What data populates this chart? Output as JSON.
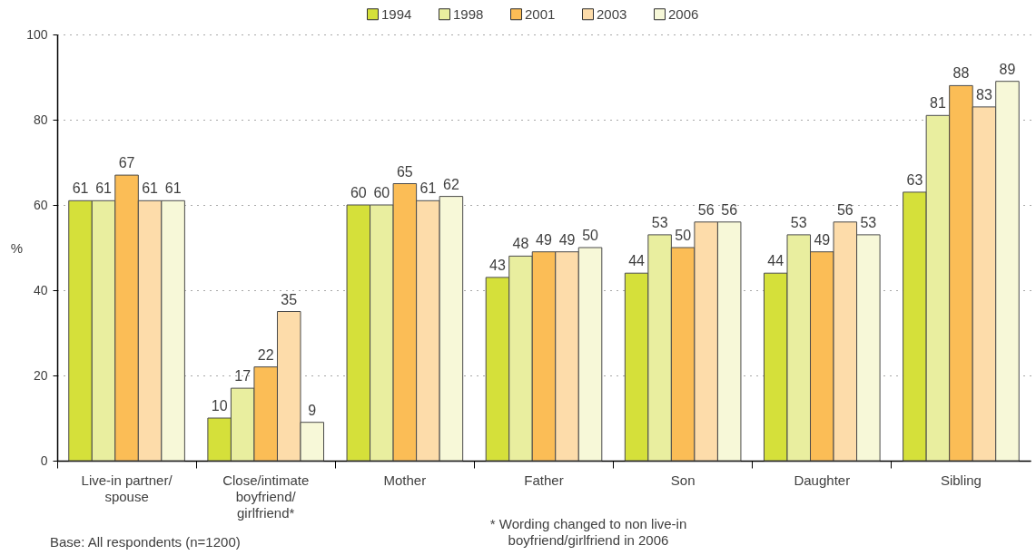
{
  "chart_data": {
    "type": "bar",
    "categories": [
      "Live-in partner/spouse",
      "Close/intimate boyfriend/girlfriend*",
      "Mother",
      "Father",
      "Son",
      "Daughter",
      "Sibling"
    ],
    "series": [
      {
        "name": "1994",
        "color": "#d5e03a",
        "values": [
          61,
          10,
          60,
          43,
          44,
          44,
          63
        ]
      },
      {
        "name": "1998",
        "color": "#e9ee9f",
        "values": [
          61,
          17,
          60,
          48,
          53,
          53,
          81
        ]
      },
      {
        "name": "2001",
        "color": "#fbbd56",
        "values": [
          67,
          22,
          65,
          49,
          50,
          49,
          88
        ]
      },
      {
        "name": "2003",
        "color": "#fddcaa",
        "values": [
          61,
          35,
          61,
          49,
          56,
          56,
          83
        ]
      },
      {
        "name": "2006",
        "color": "#f7f8d8",
        "values": [
          61,
          9,
          62,
          50,
          56,
          53,
          89
        ]
      }
    ],
    "ylabel": "%",
    "ylim": [
      0,
      100
    ],
    "yticks": [
      0,
      20,
      40,
      60,
      80,
      100
    ],
    "grid": "y",
    "legend": "top",
    "data_labels": true,
    "annotations": [
      "* Wording changed to non live-in boyfriend/girlfriend in 2006",
      "Base: All respondents (n=1200)"
    ]
  }
}
